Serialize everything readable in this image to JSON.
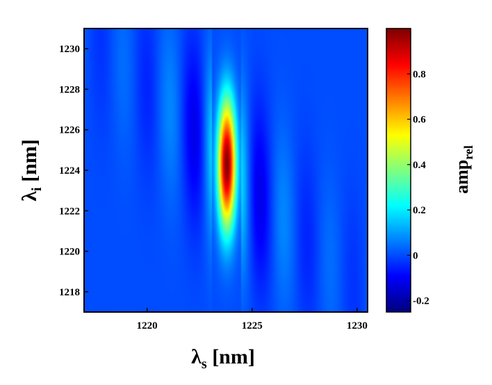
{
  "chart_data": {
    "type": "heatmap",
    "title": "",
    "x_axis": {
      "label_symbol": "λ",
      "label_subscript": "s",
      "label_unit": " [nm]",
      "range": [
        1217,
        1230.5
      ],
      "ticks": [
        1220,
        1225,
        1230
      ],
      "tick_labels": [
        "1220",
        "1225",
        "1230"
      ]
    },
    "y_axis": {
      "label_symbol": "λ",
      "label_subscript": "i",
      "label_unit": " [nm]",
      "range": [
        1217,
        1231
      ],
      "ticks": [
        1218,
        1220,
        1222,
        1224,
        1226,
        1228,
        1230
      ],
      "tick_labels": [
        "1218",
        "1220",
        "1222",
        "1224",
        "1226",
        "1228",
        "1230"
      ]
    },
    "colorbar": {
      "label_main": "amp",
      "label_subscript": "rel",
      "range": [
        -0.25,
        1.0
      ],
      "ticks": [
        -0.2,
        0,
        0.2,
        0.4,
        0.6,
        0.8
      ],
      "tick_labels": [
        "-0.2",
        "0",
        "0.2",
        "0.4",
        "0.6",
        "0.8"
      ],
      "colormap": "jet"
    },
    "features": {
      "central_peak": {
        "x": 1223.8,
        "y": 1224.3,
        "value": 1.0
      },
      "fringe_period_nm": 1.1,
      "sidelobe_min": -0.2,
      "diagonal_envelope": "anti-diagonal"
    },
    "grid": false
  }
}
